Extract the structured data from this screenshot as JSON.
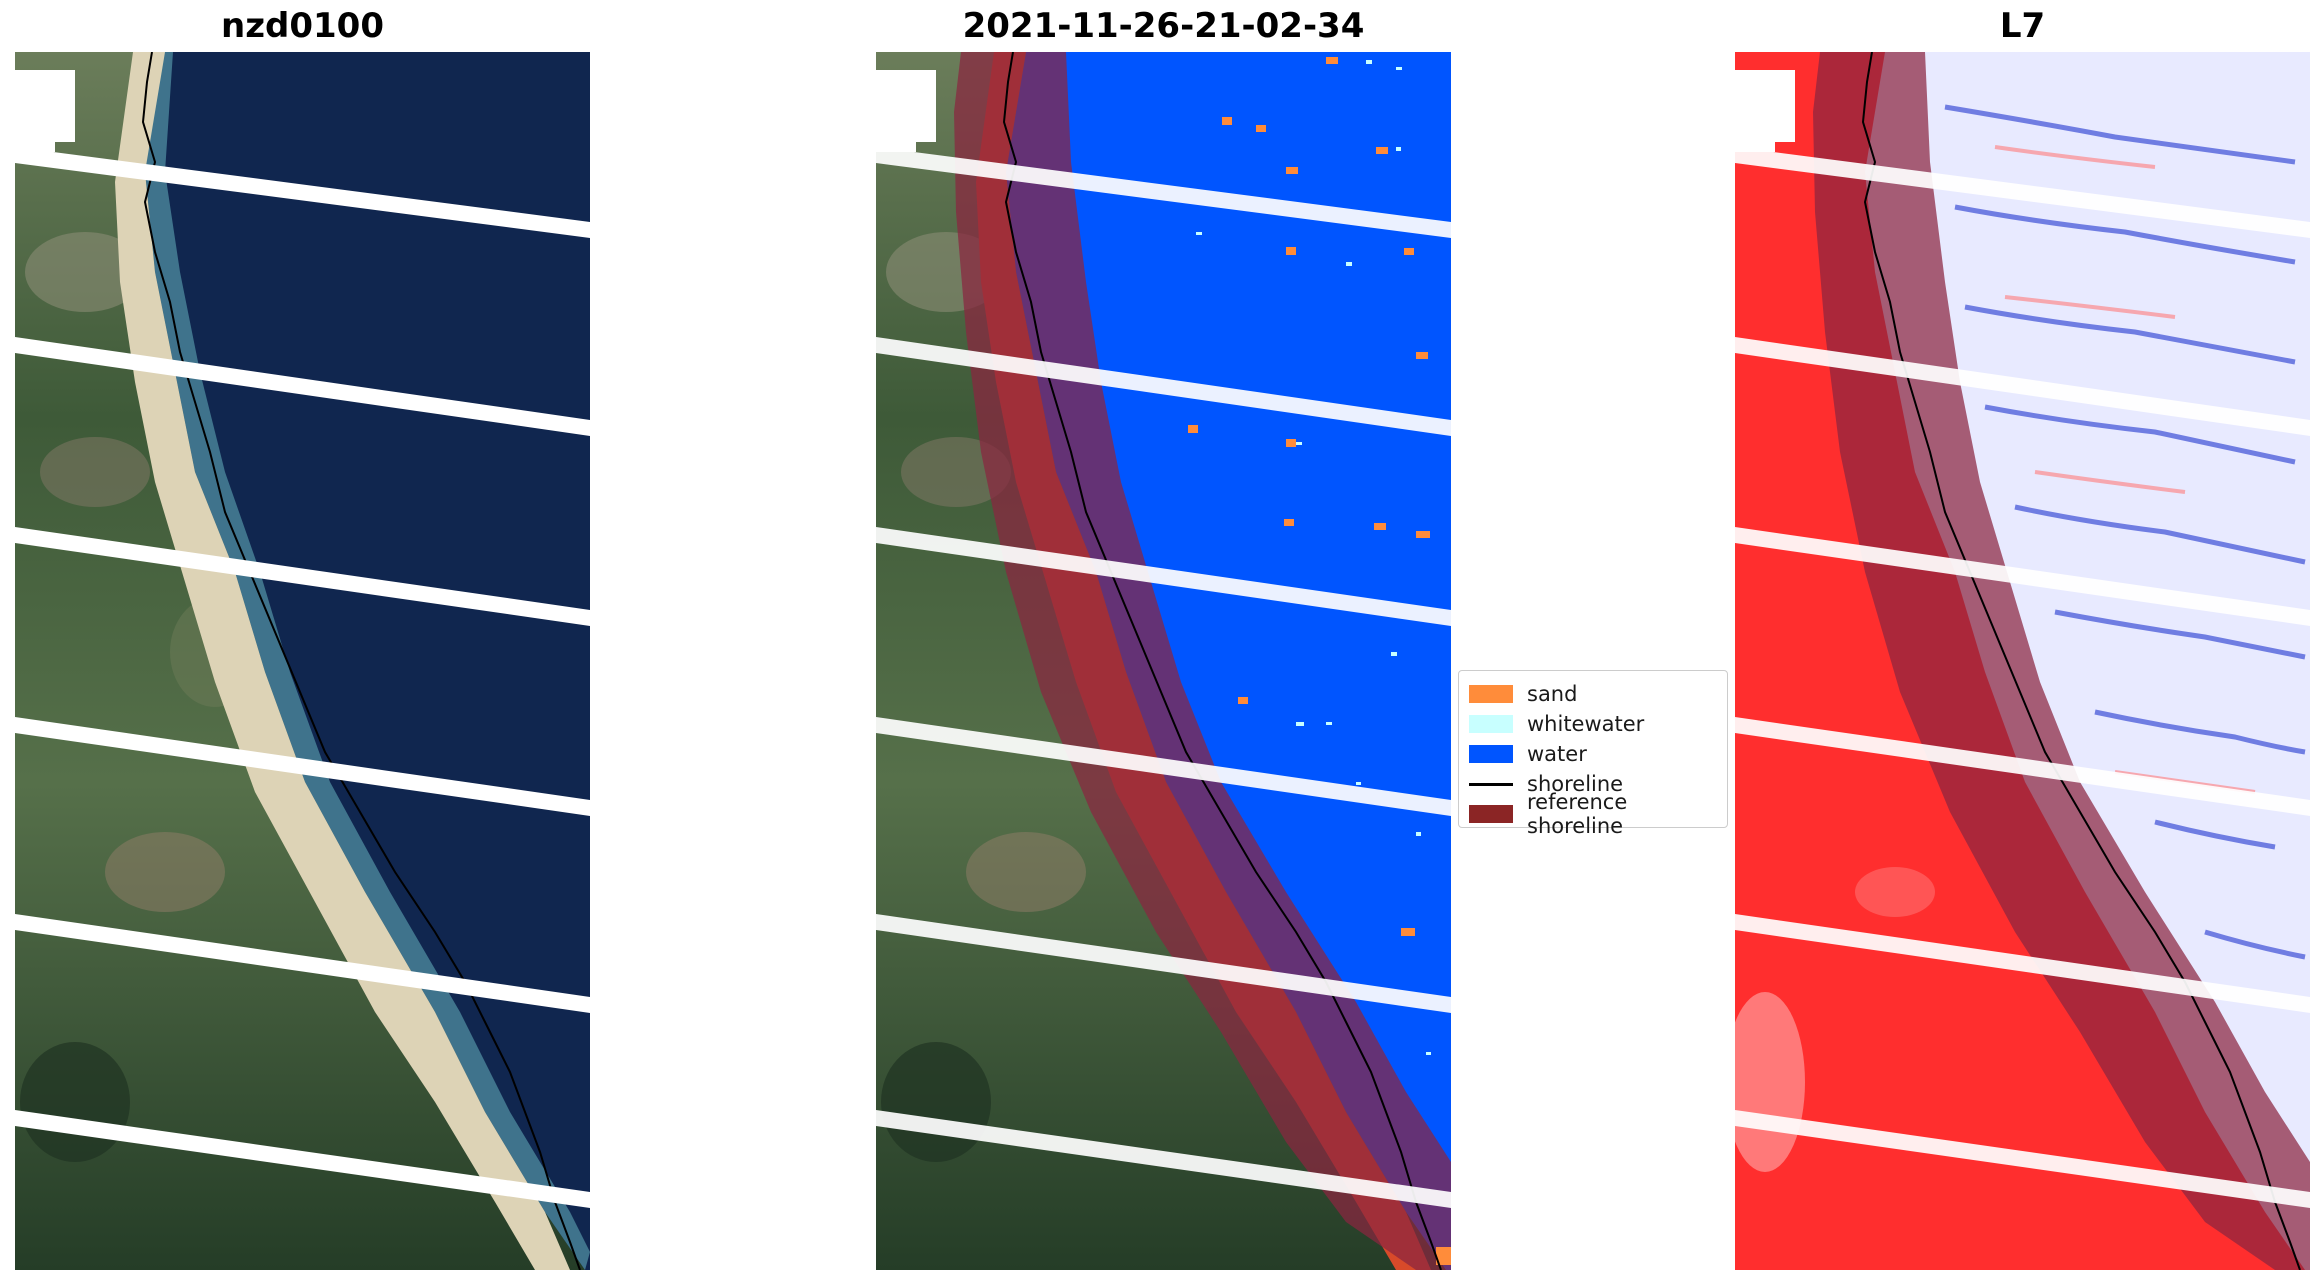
{
  "panels": [
    {
      "title": "nzd0100"
    },
    {
      "title": "2021-11-26-21-02-34"
    },
    {
      "title": "L7"
    }
  ],
  "legend": {
    "items": [
      {
        "label": "sand",
        "color": "#ff8c3a",
        "kind": "patch"
      },
      {
        "label": "whitewater",
        "color": "#c8ffff",
        "kind": "patch"
      },
      {
        "label": "water",
        "color": "#0055ff",
        "kind": "patch"
      },
      {
        "label": "shoreline",
        "color": "#000000",
        "kind": "line"
      },
      {
        "label": "reference shoreline",
        "color": "#8b2525",
        "kind": "patch"
      }
    ]
  },
  "colors": {
    "ocean_rgb": "#10254f",
    "land_dark": "#2f4a2e",
    "land_light": "#5e7a4c",
    "beach": "#e8dcc0",
    "classified_water": "#0055ff",
    "reference_buffer": "#8b2540",
    "index_land": "#ff3030",
    "index_water": "#e6e8ff"
  }
}
